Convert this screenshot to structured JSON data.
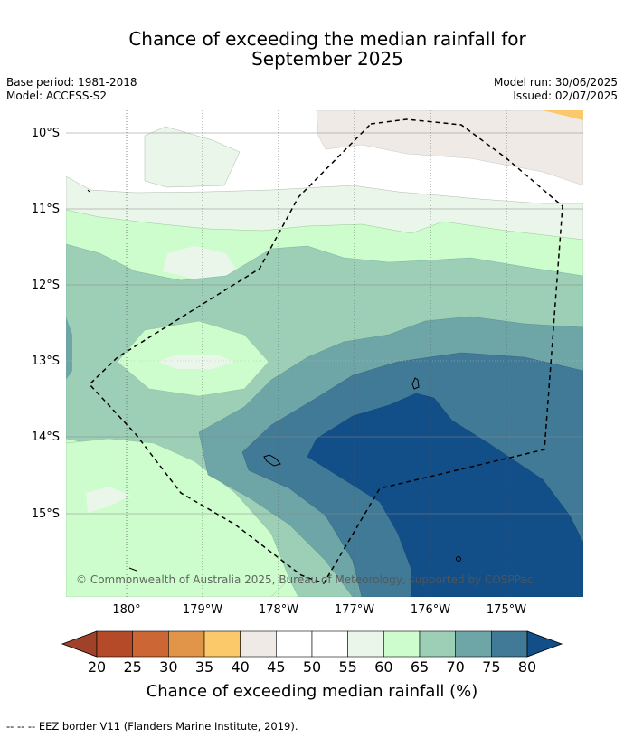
{
  "title_line1": "Chance of exceeding the median rainfall for",
  "title_line2": "September 2025",
  "base_period": "Base period: 1981-2018",
  "model": "Model: ACCESS-S2",
  "model_run": "Model run: 30/06/2025",
  "issued": "Issued: 02/07/2025",
  "lat_labels": [
    "10°S",
    "11°S",
    "12°S",
    "13°S",
    "14°S",
    "15°S"
  ],
  "lon_labels": [
    "180°",
    "179°W",
    "178°W",
    "177°W",
    "176°W",
    "175°W"
  ],
  "copyright": "© Commonwealth of Australia 2025, Bureau of Meteorology, supported by COSPPac",
  "colorbar": {
    "ticks": [
      "20",
      "25",
      "30",
      "35",
      "40",
      "45",
      "50",
      "55",
      "60",
      "65",
      "70",
      "75",
      "80"
    ],
    "colors": [
      "#a0412a",
      "#b44a27",
      "#cc6634",
      "#e09548",
      "#fbc96a",
      "#efeae6",
      "#ffffff",
      "#ffffff",
      "#eaf6ea",
      "#cdfccd",
      "#9ccfb6",
      "#6ea6a8",
      "#417a97",
      "#124f88"
    ],
    "title": "Chance of exceeding median rainfall (%)"
  },
  "footer": "-- -- -- EEZ border V11 (Flanders Marine Institute, 2019)."
}
